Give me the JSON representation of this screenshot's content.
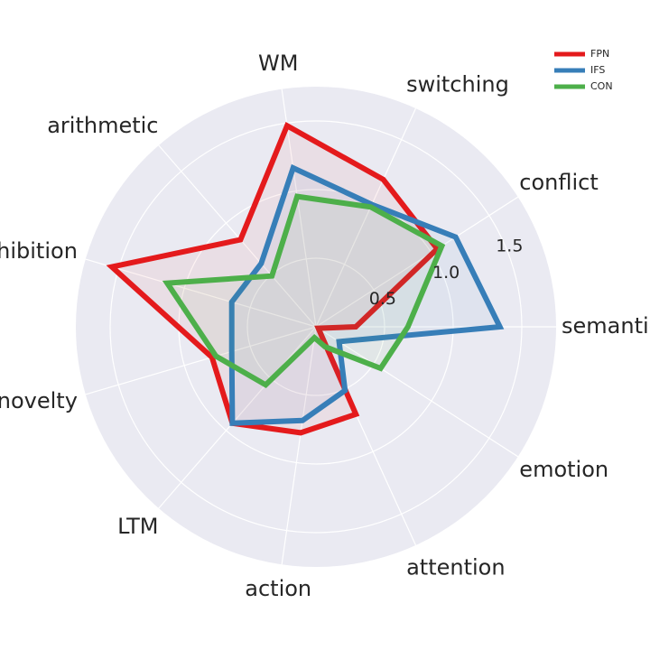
{
  "chart_data": {
    "type": "radar",
    "title": "",
    "axes": [
      "semantics",
      "conflict",
      "switching",
      "WM",
      "arithmetic",
      "inhibition",
      "novelty",
      "LTM",
      "action",
      "attention",
      "emotion"
    ],
    "rlim": [
      0,
      1.75
    ],
    "r_ticks": [
      0.5,
      1.0,
      1.5
    ],
    "r_tick_labels": [
      "0.5",
      "1.0",
      "1.5"
    ],
    "grid": true,
    "legend_position": "top-right",
    "series": [
      {
        "name": "FPN",
        "color": "#e41a1c",
        "values": [
          0.29,
          1.05,
          1.18,
          1.48,
          0.84,
          1.55,
          0.79,
          0.93,
          0.78,
          0.7,
          0.02
        ]
      },
      {
        "name": "IFS",
        "color": "#377eb8",
        "values": [
          1.34,
          1.21,
          0.98,
          1.17,
          0.61,
          0.64,
          0.64,
          0.93,
          0.69,
          0.51,
          0.2
        ]
      },
      {
        "name": "CON",
        "color": "#4daf4a",
        "values": [
          0.67,
          1.09,
          0.96,
          0.96,
          0.49,
          1.13,
          0.76,
          0.56,
          0.08,
          0.16,
          0.56
        ]
      }
    ]
  }
}
